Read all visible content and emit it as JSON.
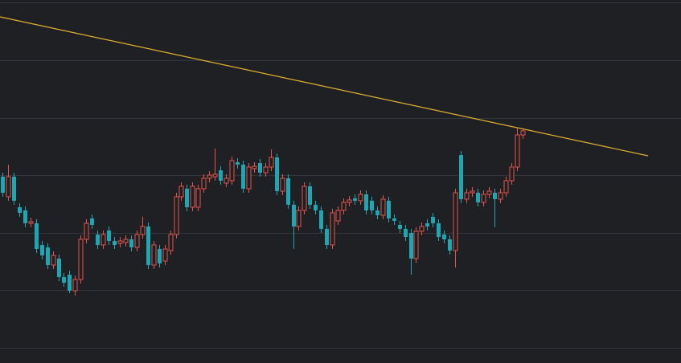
{
  "chart_data": {
    "type": "candlestick",
    "up_color": "#e5534b",
    "down_color": "#1fa6b3",
    "grid": true,
    "grid_color": "#34363d",
    "background": "#1f2024",
    "ylim": [
      -19,
      433
    ],
    "yticks": [
      0,
      72,
      143,
      215,
      286,
      358,
      430
    ],
    "xlim": [
      -0.43,
      121.4
    ],
    "open": [
      213,
      188,
      213,
      175,
      171,
      155,
      155,
      128,
      125,
      103,
      111,
      88,
      91,
      71,
      85,
      135,
      161,
      141,
      128,
      146,
      133,
      130,
      131,
      135,
      125,
      141,
      151,
      103,
      123,
      108,
      121,
      141,
      188,
      198,
      175,
      175,
      198,
      211,
      213,
      221,
      205,
      208,
      231,
      228,
      198,
      223,
      230,
      218,
      225,
      237,
      195,
      211,
      178,
      151,
      171,
      201,
      178,
      171,
      148,
      128,
      158,
      171,
      181,
      186,
      183,
      191,
      183,
      171,
      165,
      183,
      161,
      153,
      148,
      143,
      111,
      145,
      155,
      163,
      155,
      141,
      135,
      121,
      240,
      185,
      193,
      193,
      181,
      191,
      193,
      185,
      193,
      208,
      225,
      265
    ],
    "high": [
      218,
      228,
      218,
      180,
      176,
      162,
      160,
      133,
      130,
      120,
      116,
      93,
      96,
      90,
      140,
      160,
      166,
      146,
      146,
      151,
      138,
      138,
      140,
      140,
      146,
      163,
      156,
      133,
      128,
      128,
      146,
      193,
      206,
      203,
      206,
      203,
      216,
      220,
      248,
      226,
      216,
      238,
      236,
      233,
      230,
      231,
      235,
      230,
      247,
      242,
      216,
      216,
      183,
      176,
      206,
      206,
      183,
      176,
      153,
      173,
      176,
      186,
      189,
      191,
      196,
      196,
      188,
      176,
      190,
      188,
      166,
      158,
      153,
      148,
      150,
      156,
      160,
      168,
      160,
      146,
      140,
      198,
      245,
      198,
      200,
      198,
      196,
      200,
      198,
      198,
      213,
      230,
      273,
      273
    ],
    "low": [
      188,
      183,
      178,
      163,
      150,
      150,
      118,
      110,
      98,
      98,
      83,
      76,
      68,
      65,
      80,
      130,
      148,
      123,
      123,
      128,
      123,
      125,
      126,
      120,
      120,
      136,
      98,
      98,
      100,
      103,
      116,
      136,
      183,
      170,
      170,
      170,
      193,
      206,
      208,
      203,
      200,
      203,
      223,
      193,
      193,
      218,
      213,
      213,
      220,
      190,
      190,
      173,
      123,
      146,
      166,
      173,
      166,
      143,
      123,
      123,
      153,
      166,
      176,
      178,
      178,
      166,
      166,
      160,
      160,
      156,
      153,
      143,
      133,
      91,
      106,
      140,
      146,
      150,
      133,
      130,
      116,
      100,
      180,
      180,
      188,
      176,
      176,
      186,
      150,
      180,
      188,
      203,
      220,
      260
    ],
    "close": [
      193,
      213,
      183,
      168,
      155,
      157,
      123,
      115,
      103,
      115,
      88,
      81,
      71,
      85,
      135,
      155,
      153,
      128,
      141,
      133,
      128,
      133,
      135,
      125,
      141,
      151,
      103,
      128,
      105,
      123,
      141,
      188,
      201,
      175,
      201,
      198,
      211,
      215,
      216,
      208,
      211,
      233,
      228,
      198,
      225,
      226,
      218,
      225,
      237,
      195,
      211,
      178,
      151,
      171,
      201,
      178,
      171,
      148,
      128,
      168,
      171,
      181,
      184,
      183,
      191,
      171,
      171,
      165,
      185,
      161,
      158,
      148,
      138,
      111,
      145,
      151,
      151,
      155,
      138,
      135,
      121,
      193,
      185,
      193,
      195,
      181,
      191,
      195,
      185,
      193,
      208,
      225,
      265,
      270
    ],
    "trendline": {
      "color": "#e3b22d",
      "start": [
        -0.43,
        412
      ],
      "end": [
        115.5,
        239
      ]
    }
  }
}
